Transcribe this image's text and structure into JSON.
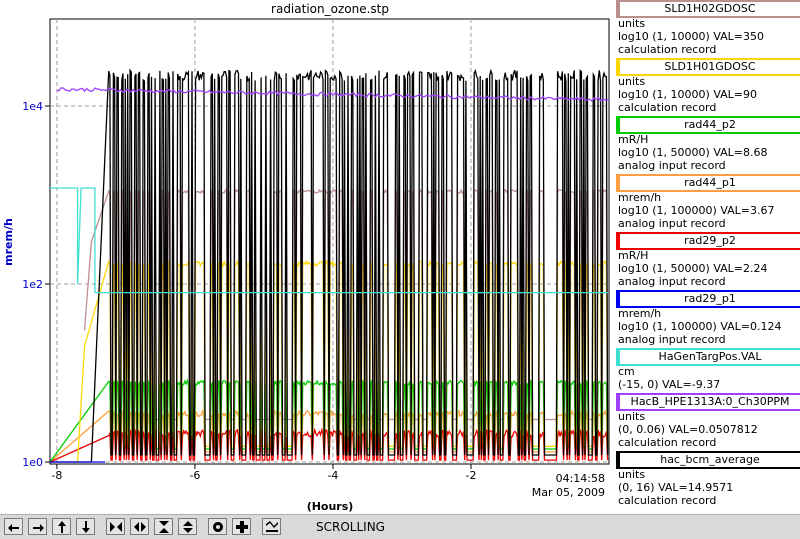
{
  "chart_data": {
    "type": "line",
    "title": "radiation_ozone.stp",
    "xlabel": "(Hours)",
    "ylabel": "mrem/h",
    "y_scale": "log",
    "xlim": [
      -8.1,
      0
    ],
    "x_ticks": [
      -8,
      -6,
      -4,
      -2
    ],
    "x_tick_labels": [
      "-8",
      "-6",
      "-4",
      "-2"
    ],
    "y_ticks": [
      1,
      100,
      10000
    ],
    "y_tick_labels": [
      "1e0",
      "1e2",
      "1e4"
    ],
    "time_label": "04:14:58",
    "date_label": "Mar 05, 2009",
    "grid": true,
    "series": [
      {
        "name": "SLD1H02GDOSC",
        "units": "units",
        "range": "log10 (1, 10000)",
        "value": "VAL=350",
        "record": "calculation record",
        "color": "#bc8f8f"
      },
      {
        "name": "SLD1H01GDOSC",
        "units": "units",
        "range": "log10 (1, 10000)",
        "value": "VAL=90",
        "record": "calculation record",
        "color": "#ffd700"
      },
      {
        "name": "rad44_p2",
        "units": "mR/H",
        "range": "log10 (1, 50000)",
        "value": "VAL=8.68",
        "record": "analog input record",
        "color": "#00cd00"
      },
      {
        "name": "rad44_p1",
        "units": "mrem/h",
        "range": "log10 (1, 100000)",
        "value": "VAL=3.67",
        "record": "analog input record",
        "color": "#ff9f3f"
      },
      {
        "name": "rad29_p2",
        "units": "mR/H",
        "range": "log10 (1, 50000)",
        "value": "VAL=2.24",
        "record": "analog input record",
        "color": "#ee0000"
      },
      {
        "name": "rad29_p1",
        "units": "mrem/h",
        "range": "log10 (1, 100000)",
        "value": "VAL=0.124",
        "record": "analog input record",
        "color": "#0000ee"
      },
      {
        "name": "HaGenTargPos.VAL",
        "units": "cm",
        "range": "(-15, 0)",
        "value": "VAL=-9.37",
        "record": "",
        "color": "#40e0d0"
      },
      {
        "name": "HacB_HPE1313A:0_Ch30PPM",
        "units": "units",
        "range": "(0, 0.06)",
        "value": "VAL=0.0507812",
        "record": "calculation record",
        "color": "#a040ff"
      },
      {
        "name": "hac_bcm_average",
        "units": "units",
        "range": "(0, 16)",
        "value": "VAL=14.9571",
        "record": "calculation record",
        "color": "#000000"
      }
    ]
  },
  "toolbar": {
    "buttons": [
      "arrow-left-icon",
      "arrow-right-icon",
      "arrow-up-icon",
      "arrow-down-icon",
      "zoom-in-x-icon",
      "zoom-out-x-icon",
      "zoom-in-y-icon",
      "zoom-out-y-icon",
      "record-icon",
      "plus-icon",
      "autoscale-icon"
    ],
    "mode_label": "SCROLLING"
  }
}
